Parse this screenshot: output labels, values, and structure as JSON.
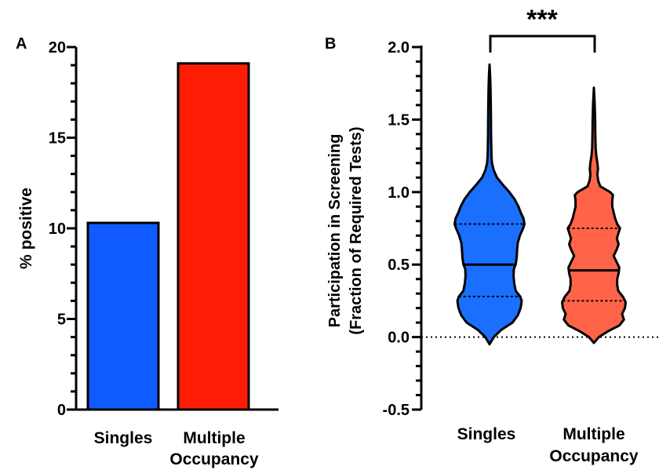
{
  "chart_data": [
    {
      "type": "bar",
      "panel_label": "A",
      "categories": [
        {
          "line1": "Singles",
          "line2": ""
        },
        {
          "line1": "Multiple",
          "line2": "Occupancy"
        }
      ],
      "values": [
        10.3,
        19.1
      ],
      "colors": [
        "#0f5bff",
        "#ff1e05"
      ],
      "ylabel": "% positive",
      "ylim": [
        0,
        20
      ],
      "yticks": [
        "0",
        "5",
        "10",
        "15",
        "20"
      ],
      "ytick_values": [
        0,
        5,
        10,
        15,
        20
      ],
      "minor_tick_step": 1,
      "grid": false
    },
    {
      "type": "violin",
      "panel_label": "B",
      "categories": [
        {
          "line1": "Singles",
          "line2": ""
        },
        {
          "line1": "Multiple",
          "line2": "Occupancy"
        }
      ],
      "colors": [
        "#1a6fff",
        "#ff6448"
      ],
      "ylabel_line1": "Participation in Screening",
      "ylabel_line2": "(Fraction of Required Tests)",
      "ylim": [
        -0.5,
        2.0
      ],
      "yticks": [
        "-0.5",
        "0.0",
        "0.5",
        "1.0",
        "1.5",
        "2.0"
      ],
      "ytick_values": [
        -0.5,
        0.0,
        0.5,
        1.0,
        1.5,
        2.0
      ],
      "minor_tick_step": 0.1,
      "reference_line": 0.0,
      "grid": false,
      "violins": [
        {
          "median": 0.5,
          "q1": 0.28,
          "q3": 0.78,
          "min": -0.05,
          "max": 1.88,
          "profile": [
            [
              -0.05,
              0.0
            ],
            [
              0.0,
              0.12
            ],
            [
              0.05,
              0.33
            ],
            [
              0.1,
              0.65
            ],
            [
              0.15,
              0.8
            ],
            [
              0.2,
              0.88
            ],
            [
              0.25,
              0.91
            ],
            [
              0.28,
              0.87
            ],
            [
              0.32,
              0.74
            ],
            [
              0.37,
              0.7
            ],
            [
              0.42,
              0.68
            ],
            [
              0.47,
              0.69
            ],
            [
              0.5,
              0.74
            ],
            [
              0.55,
              0.77
            ],
            [
              0.6,
              0.78
            ],
            [
              0.65,
              0.8
            ],
            [
              0.7,
              0.86
            ],
            [
              0.75,
              0.95
            ],
            [
              0.78,
              0.99
            ],
            [
              0.82,
              0.96
            ],
            [
              0.86,
              0.88
            ],
            [
              0.9,
              0.82
            ],
            [
              0.95,
              0.71
            ],
            [
              1.0,
              0.56
            ],
            [
              1.05,
              0.38
            ],
            [
              1.1,
              0.21
            ],
            [
              1.15,
              0.12
            ],
            [
              1.2,
              0.07
            ],
            [
              1.25,
              0.055
            ],
            [
              1.3,
              0.05
            ],
            [
              1.4,
              0.042
            ],
            [
              1.5,
              0.04
            ],
            [
              1.6,
              0.035
            ],
            [
              1.7,
              0.028
            ],
            [
              1.8,
              0.018
            ],
            [
              1.88,
              0.0
            ]
          ]
        },
        {
          "median": 0.46,
          "q1": 0.25,
          "q3": 0.75,
          "min": -0.04,
          "max": 1.72,
          "profile": [
            [
              -0.04,
              0.0
            ],
            [
              0.0,
              0.14
            ],
            [
              0.04,
              0.4
            ],
            [
              0.08,
              0.72
            ],
            [
              0.12,
              0.85
            ],
            [
              0.16,
              0.8
            ],
            [
              0.2,
              0.88
            ],
            [
              0.24,
              0.9
            ],
            [
              0.28,
              0.82
            ],
            [
              0.32,
              0.69
            ],
            [
              0.36,
              0.66
            ],
            [
              0.4,
              0.66
            ],
            [
              0.44,
              0.7
            ],
            [
              0.48,
              0.72
            ],
            [
              0.52,
              0.64
            ],
            [
              0.56,
              0.56
            ],
            [
              0.6,
              0.64
            ],
            [
              0.64,
              0.7
            ],
            [
              0.68,
              0.65
            ],
            [
              0.72,
              0.7
            ],
            [
              0.75,
              0.74
            ],
            [
              0.78,
              0.66
            ],
            [
              0.82,
              0.6
            ],
            [
              0.86,
              0.56
            ],
            [
              0.9,
              0.52
            ],
            [
              0.94,
              0.52
            ],
            [
              0.98,
              0.54
            ],
            [
              1.0,
              0.46
            ],
            [
              1.04,
              0.18
            ],
            [
              1.08,
              0.12
            ],
            [
              1.12,
              0.1
            ],
            [
              1.16,
              0.115
            ],
            [
              1.2,
              0.1
            ],
            [
              1.25,
              0.07
            ],
            [
              1.3,
              0.05
            ],
            [
              1.4,
              0.04
            ],
            [
              1.5,
              0.035
            ],
            [
              1.6,
              0.025
            ],
            [
              1.72,
              0.0
            ]
          ]
        }
      ],
      "significance": "***"
    }
  ]
}
